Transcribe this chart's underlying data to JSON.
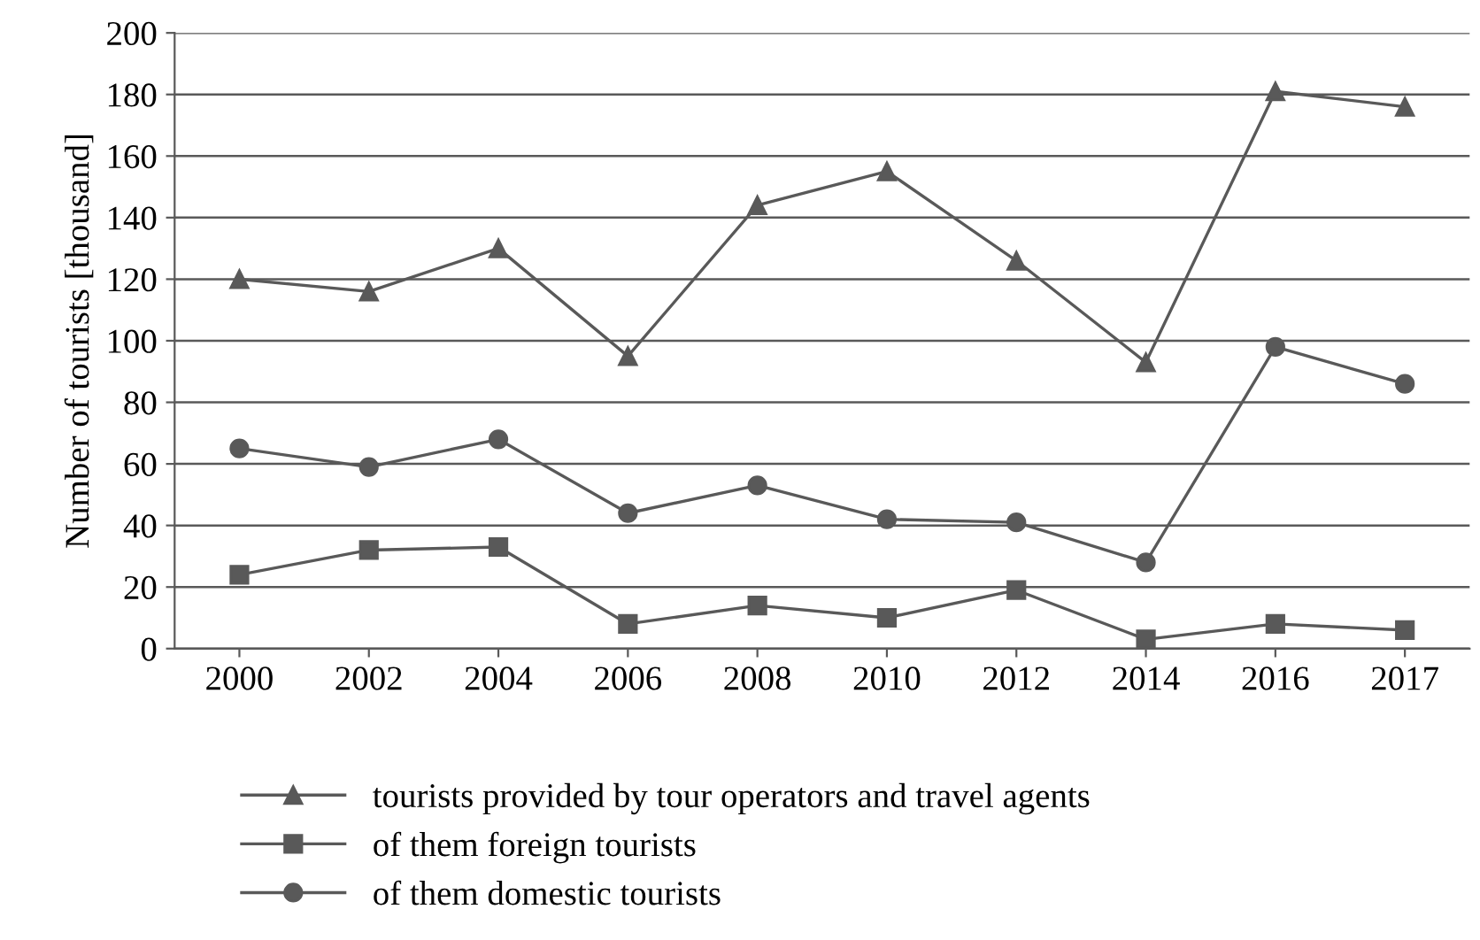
{
  "chart_data": {
    "type": "line",
    "ylabel": "Number of tourists [thousand]",
    "categories": [
      "2000",
      "2002",
      "2004",
      "2006",
      "2008",
      "2010",
      "2012",
      "2014",
      "2016",
      "2017"
    ],
    "series": [
      {
        "name": "tourists provided by tour operators and travel agents",
        "color": "#595959",
        "marker": "triangle",
        "values": [
          120,
          116,
          130,
          95,
          144,
          155,
          126,
          93,
          181,
          176
        ]
      },
      {
        "name": "of them foreign tourists",
        "color": "#595959",
        "marker": "square",
        "values": [
          24,
          32,
          33,
          8,
          14,
          10,
          19,
          3,
          8,
          6
        ]
      },
      {
        "name": "of them domestic tourists",
        "color": "#595959",
        "marker": "circle",
        "values": [
          65,
          59,
          68,
          44,
          53,
          42,
          41,
          28,
          98,
          86
        ]
      }
    ],
    "ylim": [
      0,
      200
    ],
    "yticks": [
      0,
      20,
      40,
      60,
      80,
      100,
      120,
      140,
      160,
      180,
      200
    ],
    "grid": "y",
    "legend": "bottom",
    "line_style": "solid"
  }
}
